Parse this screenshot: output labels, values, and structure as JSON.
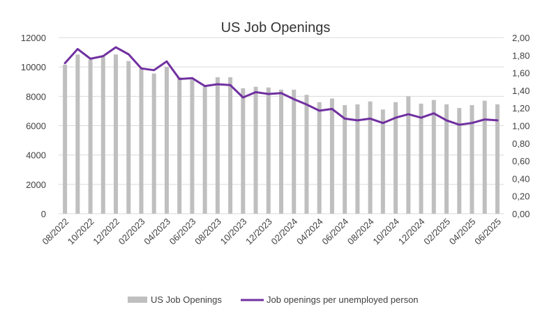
{
  "chart_data": {
    "type": "bar",
    "title": "US Job Openings",
    "categories": [
      "08/2022",
      "09/2022",
      "10/2022",
      "11/2022",
      "12/2022",
      "01/2023",
      "02/2023",
      "03/2023",
      "04/2023",
      "05/2023",
      "06/2023",
      "07/2023",
      "08/2023",
      "09/2023",
      "10/2023",
      "11/2023",
      "12/2023",
      "01/2024",
      "02/2024",
      "03/2024",
      "04/2024",
      "05/2024",
      "06/2024",
      "07/2024",
      "08/2024",
      "09/2024",
      "10/2024",
      "11/2024",
      "12/2024",
      "01/2025",
      "02/2025",
      "03/2025",
      "04/2025",
      "05/2025",
      "06/2025"
    ],
    "x_tick_labels": [
      "08/2022",
      "10/2022",
      "12/2022",
      "02/2023",
      "04/2023",
      "06/2023",
      "08/2023",
      "10/2023",
      "12/2023",
      "02/2024",
      "04/2024",
      "06/2024",
      "08/2024",
      "10/2024",
      "12/2024",
      "02/2025",
      "04/2025",
      "06/2025"
    ],
    "series": [
      {
        "name": "US Job Openings",
        "type": "bar",
        "axis": "left",
        "color": "#bfbfbf",
        "values": [
          10150,
          10850,
          10500,
          10700,
          10850,
          10400,
          9900,
          9550,
          10000,
          9300,
          9150,
          8650,
          9300,
          9300,
          8550,
          8650,
          8600,
          8450,
          8450,
          8100,
          7600,
          7850,
          7400,
          7450,
          7650,
          7100,
          7600,
          8000,
          7500,
          7750,
          7450,
          7200,
          7400,
          7700,
          7450
        ]
      },
      {
        "name": "Job openings per unemployed person",
        "type": "line",
        "axis": "right",
        "color": "#7030a0",
        "values": [
          1.71,
          1.87,
          1.76,
          1.79,
          1.89,
          1.81,
          1.65,
          1.63,
          1.73,
          1.53,
          1.54,
          1.45,
          1.47,
          1.46,
          1.32,
          1.38,
          1.36,
          1.37,
          1.3,
          1.24,
          1.17,
          1.19,
          1.08,
          1.06,
          1.08,
          1.03,
          1.09,
          1.13,
          1.09,
          1.14,
          1.06,
          1.01,
          1.03,
          1.07,
          1.06
        ]
      }
    ],
    "y_left": {
      "ylim": [
        0,
        12000
      ],
      "ticks": [
        "0",
        "2000",
        "4000",
        "6000",
        "8000",
        "10000",
        "12000"
      ]
    },
    "y_right": {
      "ylim": [
        0,
        2.0
      ],
      "ticks": [
        "0,00",
        "0,20",
        "0,40",
        "0,60",
        "0,80",
        "1,00",
        "1,20",
        "1,40",
        "1,60",
        "1,80",
        "2,00"
      ]
    },
    "grid": true,
    "legend_position": "bottom"
  }
}
